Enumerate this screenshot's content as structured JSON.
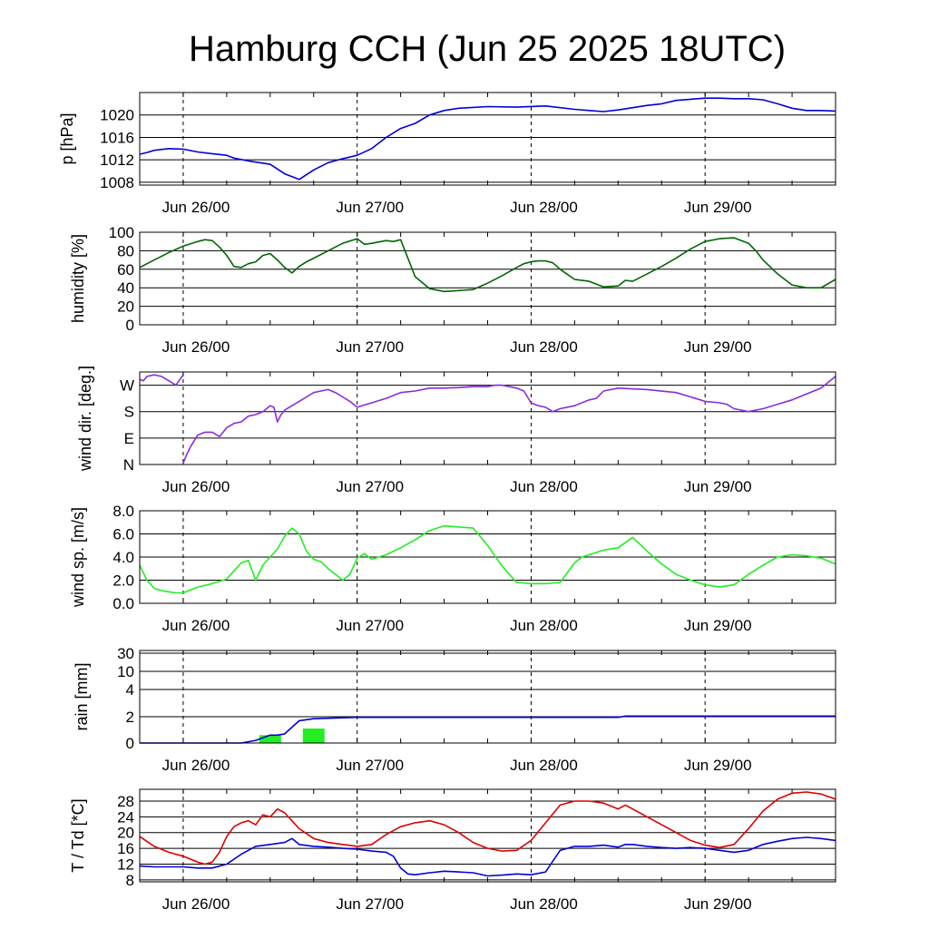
{
  "title": "Hamburg CCH (Jun 25 2025 18UTC)",
  "x_axis": {
    "unit": "hours since Jun 25 2025 18UTC",
    "range": [
      0,
      96
    ],
    "tick_hours": [
      6,
      30,
      54,
      78
    ],
    "tick_labels": [
      "Jun 26/00",
      "Jun 27/00",
      "Jun 28/00",
      "Jun 29/00"
    ]
  },
  "chart_data": [
    {
      "type": "line",
      "ylabel": "p [hPa]",
      "ylim": [
        1007.5,
        1024
      ],
      "yticks": [
        1008,
        1012,
        1016,
        1020
      ],
      "ytick_labels": [
        "1008",
        "1012",
        "1016",
        "1020"
      ],
      "grid": "horizontal at ticks, dashed verticals at midnight",
      "series": [
        {
          "color": "#0000dd",
          "x": [
            0,
            1,
            2,
            4,
            6,
            8,
            10,
            12,
            13,
            15,
            18,
            20,
            22,
            24,
            26,
            28,
            30,
            32,
            34,
            36,
            38,
            40,
            42,
            44,
            48,
            52,
            56,
            60,
            62,
            64,
            66,
            68,
            70,
            72,
            74,
            76,
            78,
            80,
            82,
            84,
            86,
            88,
            90,
            92,
            94,
            96
          ],
          "y": [
            1013,
            1013.3,
            1013.7,
            1014,
            1013.9,
            1013.4,
            1013.1,
            1012.8,
            1012.3,
            1011.8,
            1011.2,
            1009.5,
            1008.5,
            1010.2,
            1011.5,
            1012.2,
            1012.8,
            1014,
            1016,
            1017.6,
            1018.5,
            1020,
            1020.8,
            1021.2,
            1021.5,
            1021.4,
            1021.6,
            1021,
            1020.8,
            1020.6,
            1020.9,
            1021.3,
            1021.7,
            1022,
            1022.6,
            1022.8,
            1023,
            1023,
            1022.9,
            1022.9,
            1022.7,
            1022,
            1021.2,
            1020.8,
            1020.8,
            1020.7
          ]
        }
      ]
    },
    {
      "type": "line",
      "ylabel": "humidity [%]",
      "ylim": [
        0,
        100
      ],
      "yticks": [
        0,
        20,
        40,
        60,
        80,
        100
      ],
      "ytick_labels": [
        "0",
        "20",
        "40",
        "60",
        "80",
        "100"
      ],
      "grid": "horizontal at ticks, dashed verticals at midnight",
      "series": [
        {
          "color": "#006600",
          "x": [
            0,
            2,
            4,
            6,
            8,
            9,
            10,
            11,
            12,
            13,
            14,
            15,
            16,
            17,
            18,
            19,
            20,
            21,
            22,
            23,
            24,
            26,
            28,
            30,
            31,
            32,
            34,
            35,
            36,
            37,
            38,
            40,
            42,
            44,
            46,
            48,
            50,
            52,
            53,
            54,
            55,
            56,
            57,
            58,
            60,
            62,
            64,
            66,
            67,
            68,
            70,
            72,
            74,
            76,
            78,
            80,
            82,
            84,
            85,
            86,
            88,
            90,
            92,
            94,
            96
          ],
          "y": [
            62,
            70,
            78,
            85,
            90,
            92,
            91,
            84,
            75,
            63,
            62,
            66,
            68,
            75,
            77,
            70,
            62,
            56,
            63,
            68,
            72,
            80,
            88,
            93,
            87,
            88,
            91,
            90,
            92,
            72,
            52,
            39,
            36,
            37,
            38,
            45,
            53,
            62,
            66,
            68,
            69,
            69,
            67,
            60,
            49,
            47,
            41,
            42,
            48,
            47,
            55,
            63,
            72,
            82,
            90,
            93,
            94,
            88,
            80,
            70,
            55,
            43,
            40,
            40,
            49
          ]
        }
      ]
    },
    {
      "type": "line",
      "ylabel": "wind dir. [deg.]",
      "ylim": [
        0,
        315
      ],
      "yticks": [
        0,
        90,
        180,
        270
      ],
      "ytick_labels": [
        "N",
        "E",
        "S",
        "W"
      ],
      "grid": "horizontal at ticks, dashed verticals at midnight",
      "series": [
        {
          "color": "#8a2be2",
          "x": [
            0,
            0.5,
            1,
            2,
            3,
            4,
            5,
            6
          ],
          "y": [
            290,
            285,
            300,
            305,
            300,
            285,
            270,
            305
          ]
        },
        {
          "color": "#8a2be2",
          "x": [
            6,
            6.5,
            7,
            8,
            9,
            10,
            11,
            12,
            13,
            14,
            15,
            16,
            17,
            18,
            18.5,
            19,
            19.5,
            20,
            21,
            22,
            23,
            24,
            25,
            26,
            27,
            28,
            29,
            30,
            32,
            34,
            36,
            38,
            40,
            42,
            44,
            46,
            48,
            49,
            50,
            52,
            53,
            54,
            55,
            56,
            57,
            58,
            60,
            62,
            63,
            64,
            66,
            70,
            74,
            76,
            78,
            80,
            81,
            82,
            84,
            86,
            88,
            90,
            92,
            94,
            96
          ],
          "y": [
            5,
            35,
            60,
            100,
            110,
            110,
            95,
            125,
            140,
            145,
            165,
            170,
            180,
            200,
            195,
            145,
            170,
            185,
            200,
            215,
            230,
            245,
            250,
            255,
            245,
            230,
            215,
            195,
            210,
            225,
            245,
            250,
            260,
            260,
            262,
            265,
            265,
            270,
            270,
            260,
            250,
            210,
            200,
            195,
            180,
            190,
            200,
            220,
            225,
            250,
            260,
            255,
            245,
            230,
            215,
            210,
            205,
            190,
            180,
            190,
            205,
            220,
            240,
            260,
            300
          ]
        }
      ]
    },
    {
      "type": "line",
      "ylabel": "wind sp. [m/s]",
      "ylim": [
        0,
        8
      ],
      "yticks": [
        0,
        2,
        4,
        6,
        8
      ],
      "ytick_labels": [
        "0.0",
        "2.0",
        "4.0",
        "6.0",
        "8.0"
      ],
      "grid": "horizontal at ticks, dashed verticals at midnight",
      "series": [
        {
          "color": "#22ee22",
          "x": [
            0,
            1,
            2,
            3,
            4,
            5,
            6,
            8,
            10,
            12,
            13,
            14,
            15,
            16,
            17,
            18,
            19,
            20,
            21,
            22,
            23,
            24,
            25,
            26,
            27,
            28,
            29,
            30,
            31,
            32,
            34,
            36,
            38,
            40,
            42,
            44,
            46,
            48,
            50,
            52,
            54,
            56,
            58,
            60,
            61,
            62,
            64,
            65,
            66,
            68,
            70,
            72,
            74,
            76,
            78,
            80,
            82,
            84,
            86,
            88,
            90,
            92,
            94,
            96
          ],
          "y": [
            3.3,
            2.0,
            1.3,
            1.1,
            1.0,
            0.9,
            0.9,
            1.4,
            1.7,
            2.1,
            2.8,
            3.5,
            3.7,
            2.0,
            3.3,
            4.0,
            4.7,
            5.8,
            6.5,
            6.0,
            4.5,
            3.8,
            3.6,
            3.0,
            2.5,
            2.0,
            2.5,
            3.9,
            4.3,
            3.8,
            4.2,
            4.8,
            5.5,
            6.3,
            6.7,
            6.6,
            6.5,
            5.0,
            3.2,
            1.8,
            1.7,
            1.7,
            1.8,
            3.5,
            4.0,
            4.2,
            4.6,
            4.7,
            4.8,
            5.7,
            4.5,
            3.4,
            2.5,
            2.0,
            1.6,
            1.4,
            1.6,
            2.5,
            3.3,
            4.0,
            4.2,
            4.1,
            3.9,
            3.4
          ]
        }
      ]
    },
    {
      "type": "bar",
      "ylabel": "rain [mm]",
      "yticks": [
        0,
        2,
        4,
        10,
        30
      ],
      "ytick_labels": [
        "0",
        "2",
        "4",
        "10",
        "30"
      ],
      "scale": "nonlinear (ticks 0, 2, 4, 10, 30 at the positions shown)",
      "grid": "horizontal at ticks, dashed verticals at midnight",
      "bars": {
        "color": "#22ee22",
        "x_start": [
          16.5,
          22.5
        ],
        "x_end": [
          19.5,
          25.5
        ],
        "values": [
          0.6,
          1.1
        ]
      },
      "series": [
        {
          "name": "accumulated",
          "color": "#0000dd",
          "x": [
            0,
            14,
            16,
            17,
            18,
            19,
            20,
            21,
            22,
            24,
            30,
            48,
            66,
            67,
            72,
            96
          ],
          "y": [
            0,
            0,
            0.2,
            0.4,
            0.6,
            0.6,
            0.7,
            1.2,
            1.7,
            1.85,
            1.95,
            1.95,
            1.95,
            2.05,
            2.05,
            2.05
          ]
        }
      ]
    },
    {
      "type": "line",
      "ylabel": "T / Td [*C]",
      "ylim": [
        7.5,
        31
      ],
      "yticks": [
        8,
        12,
        16,
        20,
        24,
        28
      ],
      "ytick_labels": [
        "8",
        "12",
        "16",
        "20",
        "24",
        "28"
      ],
      "grid": "horizontal at ticks, dashed verticals at midnight",
      "series": [
        {
          "color": "#dd0000",
          "x": [
            0,
            2,
            4,
            6,
            8,
            9,
            10,
            11,
            12,
            13,
            14,
            15,
            16,
            17,
            18,
            19,
            20,
            21,
            22,
            24,
            26,
            28,
            30,
            32,
            34,
            36,
            38,
            40,
            42,
            44,
            46,
            48,
            50,
            52,
            54,
            56,
            58,
            60,
            62,
            64,
            66,
            67,
            68,
            70,
            72,
            74,
            76,
            78,
            80,
            82,
            84,
            86,
            88,
            90,
            92,
            94,
            96
          ],
          "y": [
            19,
            16.5,
            15,
            14,
            12.5,
            12,
            12.5,
            15,
            19,
            21.5,
            22.5,
            23,
            22,
            24.5,
            24,
            26,
            25,
            23,
            21,
            18.5,
            17.5,
            17,
            16.5,
            17,
            19.5,
            21.5,
            22.5,
            23,
            22,
            20,
            17.5,
            16,
            15.3,
            15.5,
            18,
            22.5,
            27,
            28,
            28,
            27.5,
            26,
            27,
            26,
            24,
            22,
            20,
            18,
            16.8,
            16.2,
            17,
            21,
            25.5,
            28.5,
            30,
            30.3,
            29.8,
            28.5
          ]
        },
        {
          "color": "#0000dd",
          "x": [
            0,
            2,
            4,
            6,
            8,
            10,
            12,
            14,
            16,
            18,
            20,
            21,
            22,
            24,
            26,
            28,
            30,
            32,
            34,
            35,
            36,
            37,
            38,
            40,
            42,
            44,
            46,
            48,
            50,
            52,
            54,
            56,
            58,
            60,
            62,
            64,
            66,
            67,
            68,
            70,
            72,
            74,
            76,
            78,
            80,
            82,
            84,
            86,
            88,
            90,
            92,
            94,
            96
          ],
          "y": [
            11.5,
            11.3,
            11.3,
            11.3,
            11,
            11,
            12,
            14.5,
            16.5,
            17,
            17.5,
            18.5,
            17,
            16.5,
            16.3,
            16,
            15.8,
            15.3,
            15,
            14,
            11,
            9.5,
            9.3,
            9.8,
            10.2,
            10,
            9.8,
            9,
            9.2,
            9.5,
            9.3,
            10,
            15.5,
            16.5,
            16.5,
            16.8,
            16.3,
            17,
            17,
            16.5,
            16.2,
            16,
            16.2,
            16,
            15.5,
            15,
            15.5,
            17,
            17.8,
            18.5,
            18.8,
            18.5,
            18
          ]
        }
      ]
    }
  ]
}
